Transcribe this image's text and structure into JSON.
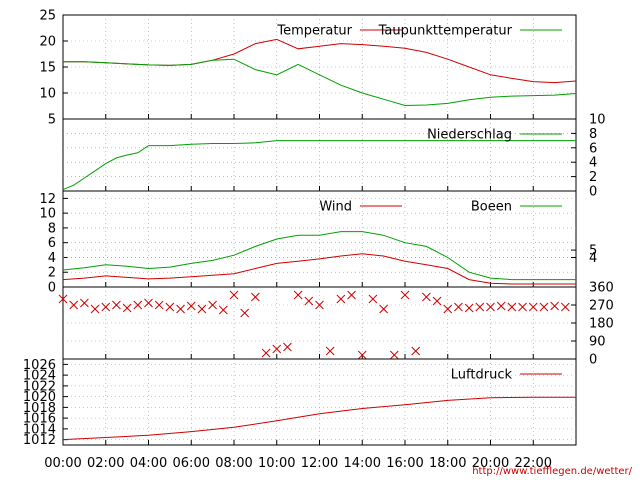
{
  "chart_data": [
    {
      "id": "temp",
      "type": "line",
      "ylim": [
        5,
        25
      ],
      "yticks": [
        "5",
        "10",
        "15",
        "20",
        "25"
      ],
      "grid": true,
      "legend_position": "top-right",
      "x": [
        0,
        1,
        2,
        3,
        4,
        5,
        6,
        7,
        8,
        9,
        10,
        11,
        12,
        13,
        14,
        15,
        16,
        17,
        18,
        19,
        20,
        21,
        22,
        23,
        24
      ],
      "series": [
        {
          "name": "Temperatur",
          "color": "#d00000",
          "values": [
            16,
            16,
            15.8,
            15.6,
            15.4,
            15.3,
            15.5,
            16.3,
            17.5,
            19.5,
            20.3,
            18.5,
            19,
            19.5,
            19.3,
            19,
            18.6,
            17.8,
            16.5,
            15,
            13.5,
            12.8,
            12.2,
            12,
            12.3
          ]
        },
        {
          "name": "Taupunkttemperatur",
          "color": "#00a000",
          "values": [
            16,
            16,
            15.8,
            15.6,
            15.4,
            15.3,
            15.5,
            16.3,
            16.5,
            14.5,
            13.5,
            15.5,
            13.5,
            11.5,
            10,
            8.8,
            7.6,
            7.7,
            8,
            8.7,
            9.2,
            9.4,
            9.5,
            9.6,
            9.9
          ]
        }
      ]
    },
    {
      "id": "rain",
      "type": "line",
      "ylim": [
        0,
        10
      ],
      "yticks": [
        "0",
        "2",
        "4",
        "6",
        "8",
        "10"
      ],
      "y_axis_side": "right",
      "grid": true,
      "legend_position": "top-right",
      "x": [
        0,
        0.5,
        1,
        1.5,
        2,
        2.5,
        3,
        3.5,
        4,
        5,
        6,
        7,
        8,
        9,
        10,
        11,
        12,
        13,
        14,
        15,
        16,
        17,
        18,
        19,
        20,
        21,
        22,
        23,
        24
      ],
      "series": [
        {
          "name": "Niederschlag",
          "color": "#00a000",
          "values": [
            0.2,
            0.8,
            1.8,
            2.8,
            3.8,
            4.6,
            5,
            5.3,
            6.3,
            6.3,
            6.5,
            6.6,
            6.6,
            6.7,
            7,
            7,
            7,
            7,
            7,
            7,
            7,
            7,
            7,
            7,
            7,
            7,
            7,
            7,
            7
          ]
        }
      ]
    },
    {
      "id": "wind",
      "type": "line",
      "ylim": [
        0,
        13
      ],
      "yticks_left": [
        "0",
        "2",
        "4",
        "6",
        "8",
        "10",
        "12"
      ],
      "yticks_right": [
        "4",
        "5"
      ],
      "grid": true,
      "legend_position": "top-right",
      "x": [
        0,
        1,
        2,
        3,
        4,
        5,
        6,
        7,
        8,
        9,
        10,
        11,
        12,
        13,
        14,
        15,
        16,
        17,
        18,
        19,
        20,
        21,
        22,
        23,
        24
      ],
      "series": [
        {
          "name": "Wind",
          "color": "#d00000",
          "values": [
            1,
            1.2,
            1.5,
            1.3,
            1.1,
            1.2,
            1.4,
            1.6,
            1.8,
            2.5,
            3.2,
            3.5,
            3.8,
            4.2,
            4.5,
            4.2,
            3.5,
            3,
            2.5,
            1,
            0.5,
            0.4,
            0.4,
            0.4,
            0.4
          ]
        },
        {
          "name": "Boeen",
          "color": "#00a000",
          "values": [
            2.3,
            2.6,
            3,
            2.8,
            2.5,
            2.7,
            3.2,
            3.6,
            4.3,
            5.5,
            6.5,
            7,
            7,
            7.5,
            7.5,
            7,
            6,
            5.5,
            4,
            2,
            1.2,
            1,
            1,
            1,
            1
          ]
        }
      ]
    },
    {
      "id": "winddir",
      "type": "scatter",
      "ylim": [
        0,
        360
      ],
      "yticks": [
        "0",
        "90",
        "180",
        "270",
        "360"
      ],
      "y_axis_side": "right",
      "grid": true,
      "marker_color": "#d00000",
      "x": [
        0,
        0.5,
        1,
        1.5,
        2,
        2.5,
        3,
        3.5,
        4,
        4.5,
        5,
        5.5,
        6,
        6.5,
        7,
        7.5,
        8,
        8.5,
        9,
        9.5,
        10,
        10.5,
        11,
        11.5,
        12,
        12.5,
        13,
        13.5,
        14,
        14.5,
        15,
        15.5,
        16,
        16.5,
        17,
        17.5,
        18,
        18.5,
        19,
        19.5,
        20,
        20.5,
        21,
        21.5,
        22,
        22.5,
        23,
        23.5
      ],
      "values": [
        300,
        270,
        280,
        250,
        260,
        270,
        255,
        270,
        280,
        270,
        260,
        250,
        265,
        250,
        270,
        245,
        320,
        230,
        310,
        30,
        50,
        60,
        320,
        290,
        270,
        40,
        300,
        320,
        20,
        300,
        250,
        20,
        320,
        40,
        310,
        290,
        250,
        260,
        255,
        260,
        260,
        265,
        260,
        260,
        260,
        260,
        265,
        260
      ]
    },
    {
      "id": "pressure",
      "type": "line",
      "ylim": [
        1011,
        1027
      ],
      "yticks": [
        "1012",
        "1014",
        "1016",
        "1018",
        "1020",
        "1022",
        "1024",
        "1026"
      ],
      "grid": true,
      "legend_position": "top-right",
      "x": [
        0,
        2,
        4,
        6,
        8,
        10,
        12,
        14,
        16,
        18,
        20,
        22,
        24
      ],
      "series": [
        {
          "name": "Luftdruck",
          "color": "#d00000",
          "values": [
            1012,
            1012.4,
            1012.8,
            1013.5,
            1014.3,
            1015.5,
            1016.8,
            1017.8,
            1018.5,
            1019.3,
            1019.8,
            1019.9,
            1019.9
          ]
        }
      ]
    }
  ],
  "x_axis": {
    "ticks": [
      "00:00",
      "02:00",
      "04:00",
      "06:00",
      "08:00",
      "10:00",
      "12:00",
      "14:00",
      "16:00",
      "18:00",
      "20:00",
      "22:00"
    ]
  },
  "credit": "http://www.tiefflegen.de/wetter/"
}
